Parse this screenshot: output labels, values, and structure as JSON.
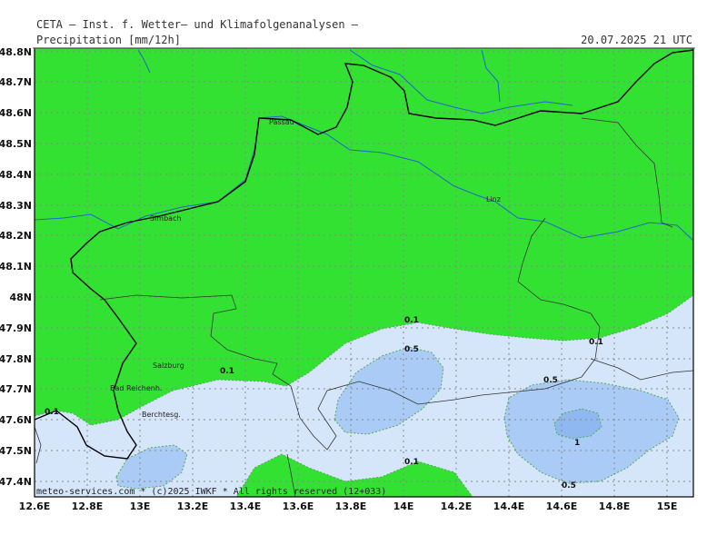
{
  "header": {
    "institute": "CETA — Inst. f. Wetter— und Klimafolgenanalysen —",
    "product": "Precipitation [mm/12h]",
    "valid_time": "20.07.2025 21 UTC"
  },
  "footer": {
    "credit": "meteo-services.com * (c)2025 IWKF * All rights reserved (12+033)"
  },
  "axes": {
    "lon_labels": [
      "12.6E",
      "12.8E",
      "13E",
      "13.2E",
      "13.4E",
      "13.6E",
      "13.8E",
      "14E",
      "14.2E",
      "14.4E",
      "14.6E",
      "14.8E",
      "15E"
    ],
    "lat_labels": [
      "48.8N",
      "48.7N",
      "48.6N",
      "48.5N",
      "48.4N",
      "48.3N",
      "48.2N",
      "48.1N",
      "48N",
      "47.9N",
      "47.8N",
      "47.7N",
      "47.6N",
      "47.5N",
      "47.4N"
    ]
  },
  "places": [
    {
      "name": "Passau"
    },
    {
      "name": "Linz"
    },
    {
      "name": "Simbach"
    },
    {
      "name": "Salzburg"
    },
    {
      "name": "Bad Reichenh."
    },
    {
      "name": "Berchtesg."
    }
  ],
  "contour_labels": [
    {
      "text": "0.1"
    },
    {
      "text": "0.1"
    },
    {
      "text": "0.1"
    },
    {
      "text": "0.1"
    },
    {
      "text": "0.1"
    },
    {
      "text": "0.5"
    },
    {
      "text": "0.5"
    },
    {
      "text": "0.5"
    },
    {
      "text": "1"
    }
  ],
  "colors": {
    "background": "#33e133",
    "level_0_1": "#d6e6fa",
    "level_0_5": "#aacbf5",
    "level_1": "#8fb8f0",
    "river": "#2266cc",
    "border": "#000000",
    "contour_line": "#55aa55",
    "grid": "#888888"
  }
}
